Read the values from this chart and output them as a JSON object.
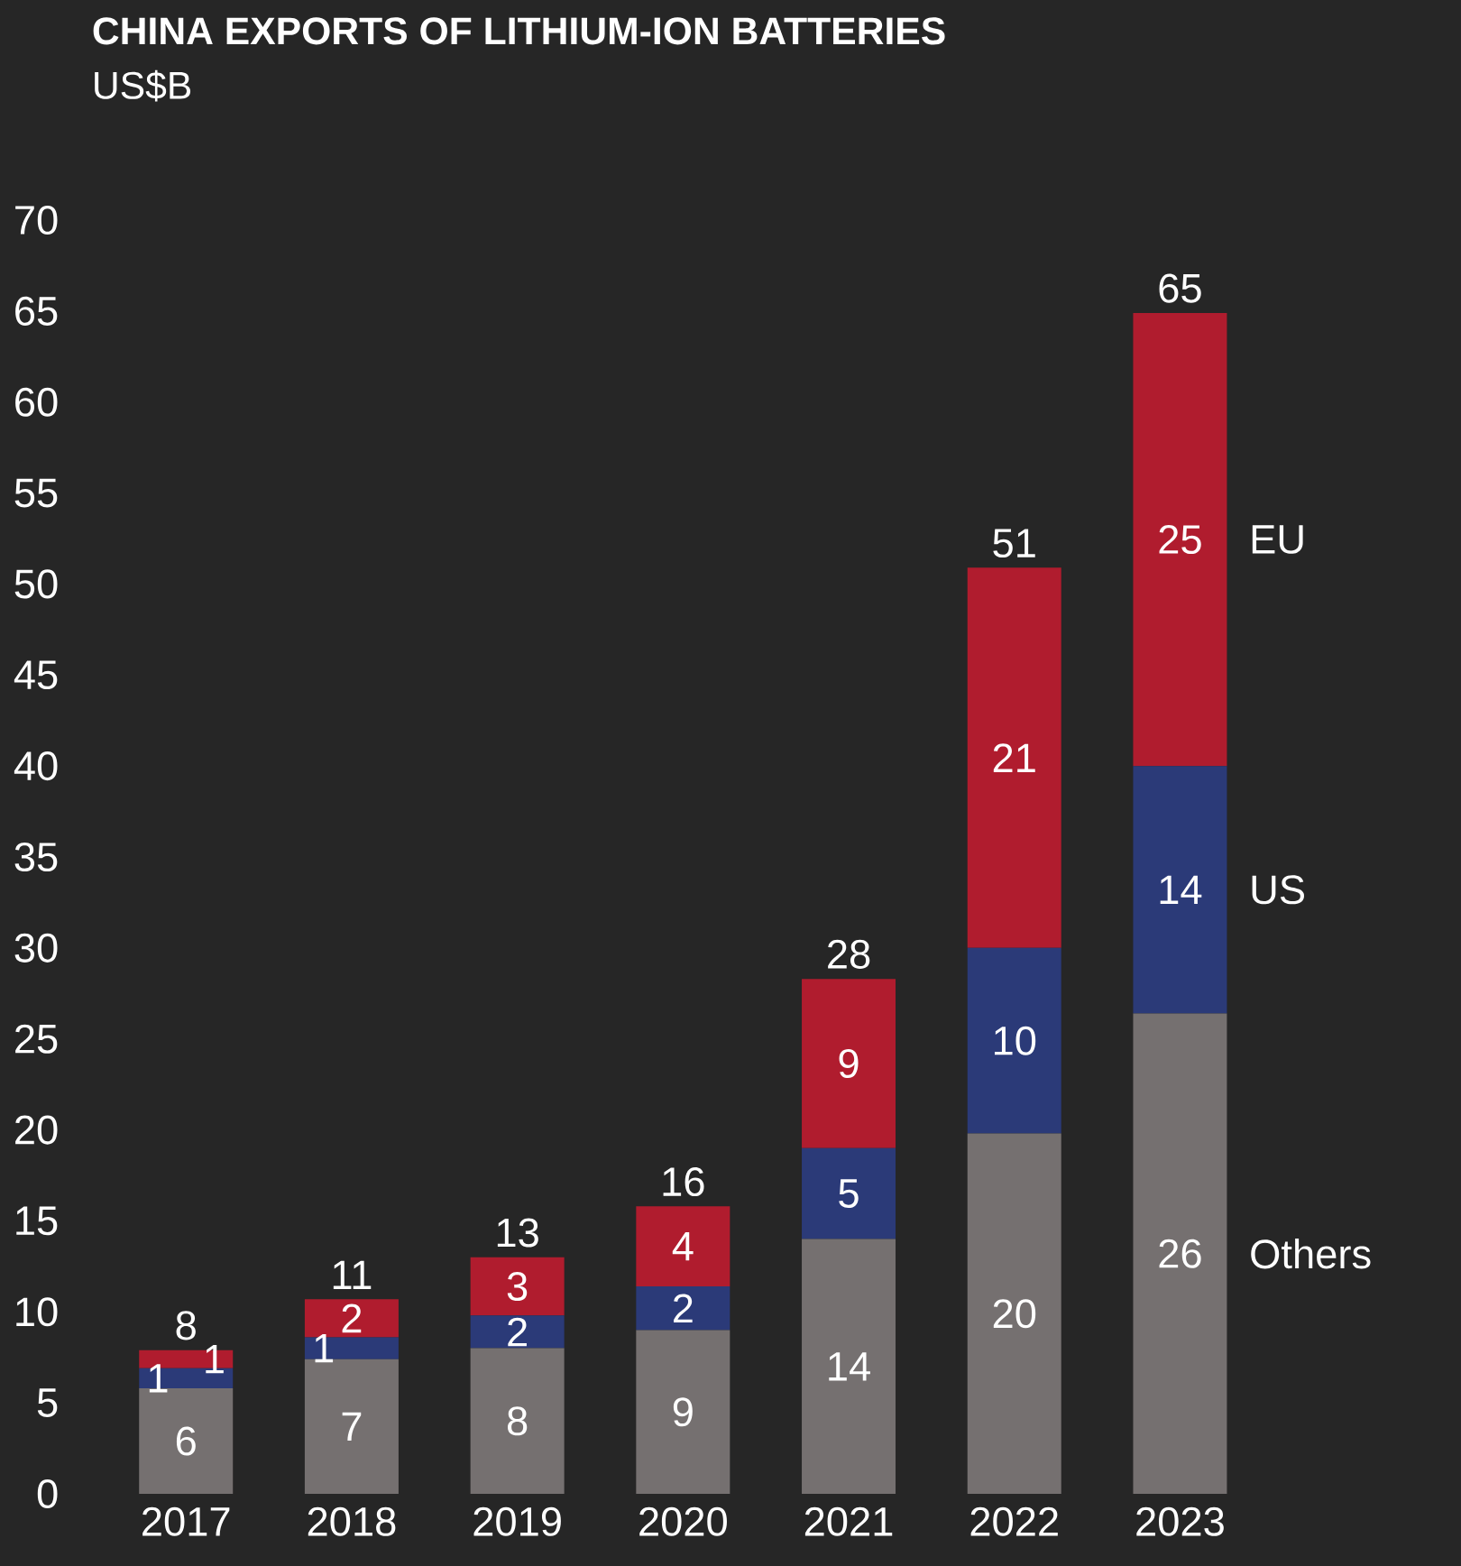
{
  "chart_data": {
    "type": "bar",
    "title": "CHINA EXPORTS OF LITHIUM-ION BATTERIES",
    "subtitle": "US$B",
    "categories": [
      "2017",
      "2018",
      "2019",
      "2020",
      "2021",
      "2022",
      "2023"
    ],
    "stacked": true,
    "series": [
      {
        "name": "Others",
        "color": "#757070",
        "values": [
          5.8,
          7.4,
          8.0,
          9.0,
          14.0,
          19.8,
          26.4
        ],
        "value_labels": [
          "6",
          "7",
          "8",
          "9",
          "14",
          "20",
          "26"
        ]
      },
      {
        "name": "US",
        "color": "#2b3a78",
        "values": [
          1.1,
          1.2,
          1.8,
          2.4,
          5.0,
          10.2,
          13.6
        ],
        "value_labels": [
          "1",
          "1",
          "2",
          "2",
          "5",
          "10",
          "14"
        ]
      },
      {
        "name": "EU",
        "color": "#b01c2e",
        "values": [
          1.0,
          2.1,
          3.2,
          4.4,
          9.3,
          20.9,
          24.9
        ],
        "value_labels": [
          "1",
          "2",
          "3",
          "4",
          "9",
          "21",
          "25"
        ]
      }
    ],
    "totals": [
      "8",
      "11",
      "13",
      "16",
      "28",
      "51",
      "65"
    ],
    "ylim": [
      0,
      70
    ],
    "yticks": [
      0,
      5,
      10,
      15,
      20,
      25,
      30,
      35,
      40,
      45,
      50,
      55,
      60,
      65,
      70
    ],
    "grid": false
  }
}
